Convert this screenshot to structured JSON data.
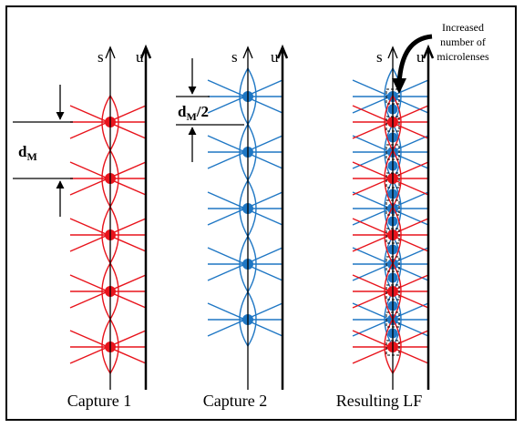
{
  "figure": {
    "captions": {
      "capture1": "Capture 1",
      "capture2": "Capture 2",
      "result": "Resulting LF"
    },
    "axis_labels": {
      "s": "s",
      "u": "u"
    },
    "annotations": {
      "dm_main": "d",
      "dm_sub": "M",
      "half_main": "d",
      "half_sub": "M",
      "half_suffix": "/2",
      "increased_line1": "Increased",
      "increased_line2": "number of",
      "increased_line3": "microlenses"
    },
    "colors": {
      "capture1": "#e8141c",
      "capture2": "#1f77c4",
      "axis": "#000000"
    },
    "icons": [
      "up-arrow-icon",
      "down-arrow-icon",
      "curved-arrow-icon"
    ]
  }
}
